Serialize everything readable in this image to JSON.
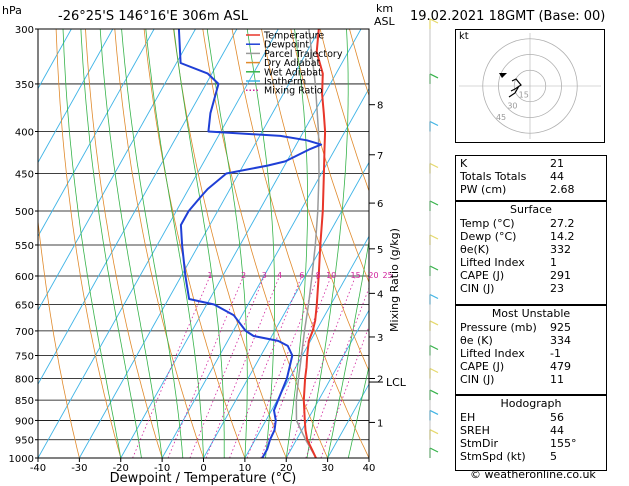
{
  "header": {
    "hpa_label": "hPa",
    "location": "-26°25'S  146°16'E  306m  ASL",
    "km_label": "km",
    "asl_label": "ASL",
    "datetime": "19.02.2021  18GMT  (Base: 00)"
  },
  "legend": [
    {
      "label": "Temperature",
      "color": "#e8362a"
    },
    {
      "label": "Dewpoint",
      "color": "#1f3fd6"
    },
    {
      "label": "Parcel Trajectory",
      "color": "#9a9a9a"
    },
    {
      "label": "Dry Adiabat",
      "color": "#e08a2c"
    },
    {
      "label": "Wet Adiabat",
      "color": "#36b34a"
    },
    {
      "label": "Isotherm",
      "color": "#3fb4e6"
    },
    {
      "label": "Mixing Ratio",
      "color": "#d0229c"
    }
  ],
  "colors": {
    "temperature": "#e8362a",
    "dewpoint": "#1f3fd6",
    "parcel": "#9a9a9a",
    "dry_adiabat": "#e08a2c",
    "wet_adiabat": "#36b34a",
    "isotherm": "#3fb4e6",
    "mixing_ratio": "#d0229c"
  },
  "chart_data": {
    "type": "line",
    "xlabel": "Dewpoint / Temperature (°C)",
    "right_axis_label": "Mixing Ratio (g/kg)",
    "x_ticks": [
      -40,
      -30,
      -20,
      -10,
      0,
      10,
      20,
      30,
      40
    ],
    "pressure_levels": [
      300,
      350,
      400,
      450,
      500,
      550,
      600,
      650,
      700,
      750,
      800,
      850,
      900,
      950,
      1000
    ],
    "xlim": [
      -40,
      40
    ],
    "plim": [
      1000,
      300
    ],
    "height_ticks": [
      {
        "label": "8",
        "p": 371
      },
      {
        "label": "7",
        "p": 427
      },
      {
        "label": "6",
        "p": 489
      },
      {
        "label": "5",
        "p": 556
      },
      {
        "label": "4",
        "p": 630
      },
      {
        "label": "3",
        "p": 712
      },
      {
        "label": "2",
        "p": 800
      },
      {
        "label": "1",
        "p": 905
      }
    ],
    "lcl_label": "LCL",
    "lcl_p": 808,
    "mixing_ratio_labels": [
      "1",
      "2",
      "3",
      "4",
      "6",
      "8",
      "10",
      "15",
      "20",
      "25"
    ],
    "mixing_ratio_values": [
      1,
      2,
      3,
      4,
      6,
      8,
      10,
      15,
      20,
      25
    ],
    "series": [
      {
        "name": "Temperature",
        "points": [
          [
            1000,
            27.2
          ],
          [
            980,
            25.4
          ],
          [
            950,
            22.6
          ],
          [
            925,
            20.9
          ],
          [
            900,
            19.4
          ],
          [
            850,
            16.4
          ],
          [
            800,
            13.8
          ],
          [
            775,
            12.6
          ],
          [
            750,
            11.2
          ],
          [
            720,
            9.6
          ],
          [
            700,
            9.2
          ],
          [
            680,
            8.4
          ],
          [
            650,
            6.6
          ],
          [
            600,
            3.2
          ],
          [
            550,
            -0.6
          ],
          [
            500,
            -4.6
          ],
          [
            450,
            -9.4
          ],
          [
            420,
            -12.6
          ],
          [
            400,
            -14.8
          ],
          [
            380,
            -17.6
          ],
          [
            360,
            -20.6
          ],
          [
            340,
            -23.2
          ],
          [
            320,
            -27.6
          ],
          [
            300,
            -30.2
          ]
        ]
      },
      {
        "name": "Dewpoint",
        "points": [
          [
            1000,
            14.2
          ],
          [
            975,
            14.2
          ],
          [
            950,
            13.6
          ],
          [
            925,
            13.4
          ],
          [
            900,
            12.4
          ],
          [
            875,
            10.6
          ],
          [
            850,
            10.2
          ],
          [
            800,
            9.4
          ],
          [
            750,
            7.6
          ],
          [
            730,
            5.2
          ],
          [
            720,
            2.2
          ],
          [
            710,
            -4.4
          ],
          [
            700,
            -7.0
          ],
          [
            670,
            -12.0
          ],
          [
            650,
            -18.2
          ],
          [
            640,
            -25.0
          ],
          [
            600,
            -29.0
          ],
          [
            550,
            -34.0
          ],
          [
            520,
            -37.0
          ],
          [
            500,
            -37.0
          ],
          [
            480,
            -36.0
          ],
          [
            470,
            -35.4
          ],
          [
            450,
            -33.0
          ],
          [
            440,
            -24.0
          ],
          [
            435,
            -20.4
          ],
          [
            420,
            -16.0
          ],
          [
            415,
            -14.0
          ],
          [
            410,
            -18.0
          ],
          [
            405,
            -25.0
          ],
          [
            400,
            -43.0
          ],
          [
            380,
            -45.0
          ],
          [
            350,
            -47.0
          ],
          [
            340,
            -51.0
          ],
          [
            330,
            -59.0
          ],
          [
            300,
            -64.0
          ]
        ]
      },
      {
        "name": "Parcel Trajectory",
        "points": [
          [
            1000,
            27.2
          ],
          [
            950,
            22.2
          ],
          [
            900,
            17.4
          ],
          [
            850,
            14.6
          ],
          [
            808,
            12.6
          ],
          [
            800,
            12.2
          ],
          [
            750,
            9.8
          ],
          [
            700,
            7.2
          ],
          [
            650,
            4.6
          ],
          [
            600,
            1.6
          ],
          [
            550,
            -1.8
          ],
          [
            500,
            -5.8
          ],
          [
            450,
            -10.6
          ],
          [
            400,
            -16.4
          ],
          [
            350,
            -23.6
          ],
          [
            300,
            -32.6
          ]
        ]
      }
    ]
  },
  "hodograph": {
    "label": "kt",
    "ring_labels": [
      "45",
      "30",
      "15"
    ]
  },
  "indices": {
    "rows": [
      {
        "label": "K",
        "value": "21"
      },
      {
        "label": "Totals Totals",
        "value": "44"
      },
      {
        "label": "PW (cm)",
        "value": "2.68"
      }
    ]
  },
  "surface": {
    "title": "Surface",
    "rows": [
      {
        "label": "Temp (°C)",
        "value": "27.2"
      },
      {
        "label": "Dewp (°C)",
        "value": "14.2"
      },
      {
        "label": "θe(K)",
        "value": "332"
      },
      {
        "label": "Lifted Index",
        "value": "1"
      },
      {
        "label": "CAPE (J)",
        "value": "291"
      },
      {
        "label": "CIN (J)",
        "value": "23"
      }
    ]
  },
  "most_unstable": {
    "title": "Most Unstable",
    "rows": [
      {
        "label": "Pressure (mb)",
        "value": "925"
      },
      {
        "label": "θe (K)",
        "value": "334"
      },
      {
        "label": "Lifted Index",
        "value": "-1"
      },
      {
        "label": "CAPE (J)",
        "value": "479"
      },
      {
        "label": "CIN (J)",
        "value": "11"
      }
    ]
  },
  "hodograph_table": {
    "title": "Hodograph",
    "rows": [
      {
        "label": "EH",
        "value": "56"
      },
      {
        "label": "SREH",
        "value": "44"
      },
      {
        "label": "StmDir",
        "value": "155°"
      },
      {
        "label": "StmSpd (kt)",
        "value": "5"
      }
    ]
  },
  "credit": "© weatheronline.co.uk"
}
